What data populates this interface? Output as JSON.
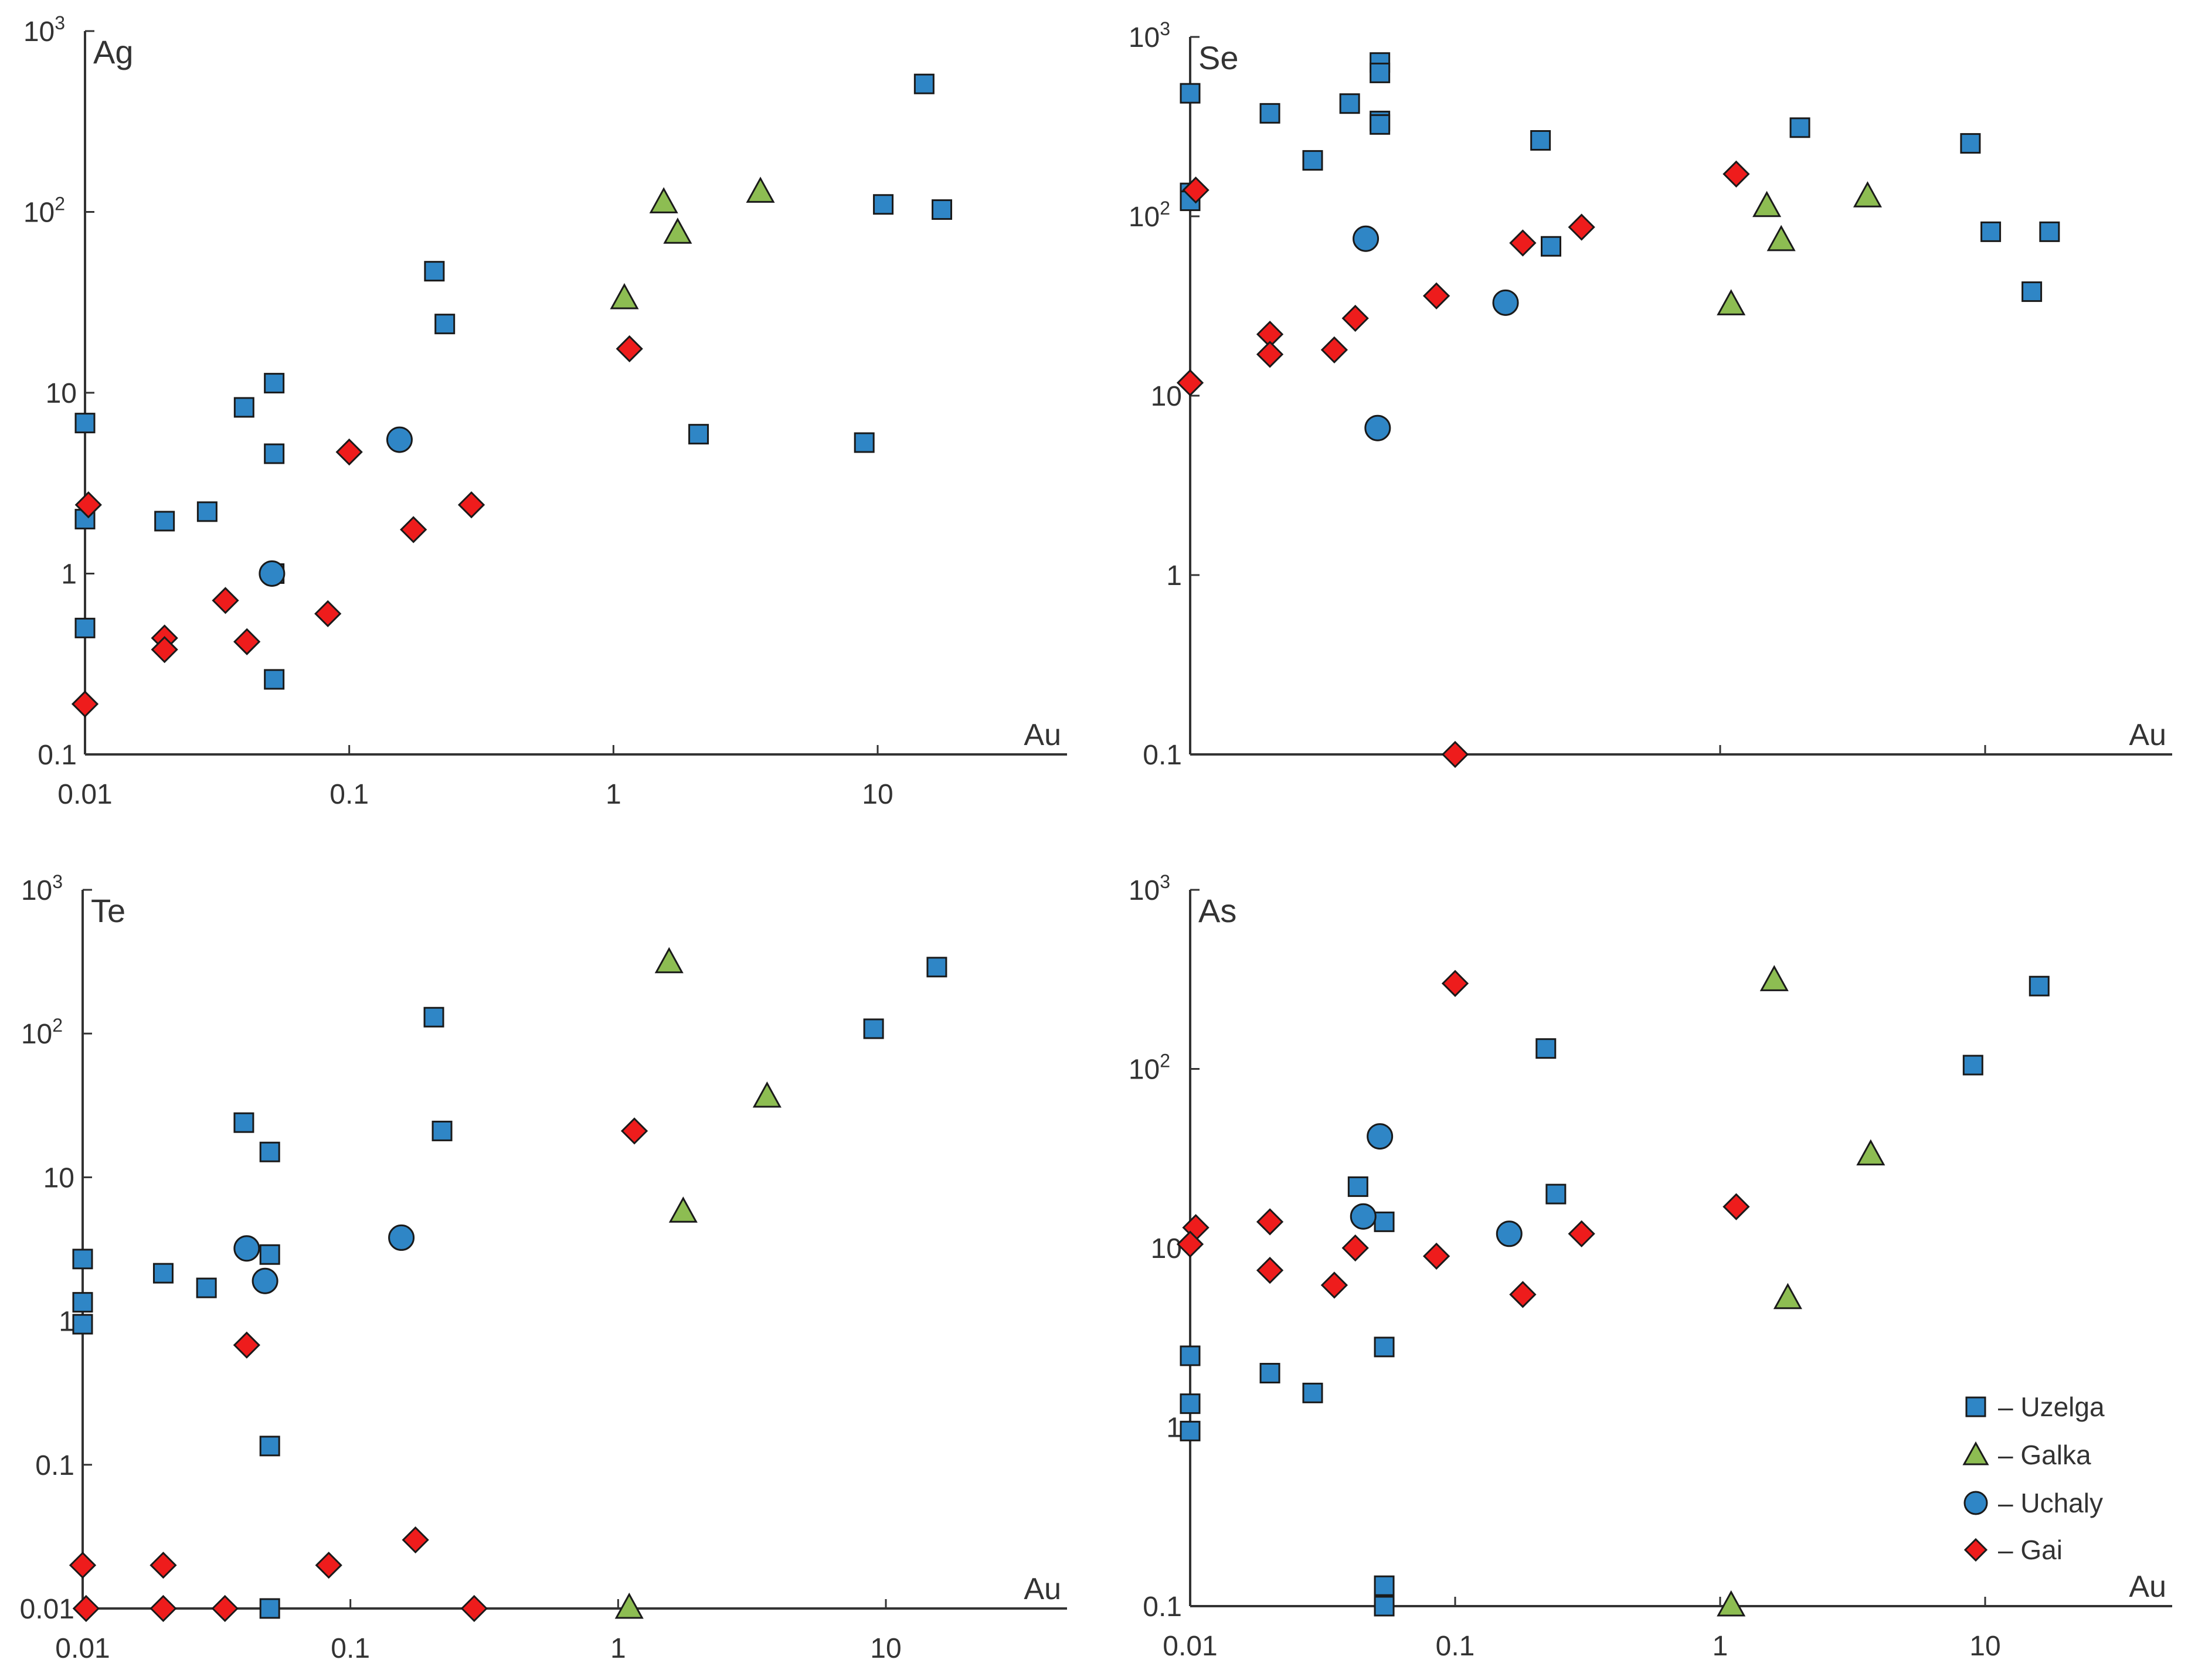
{
  "colors": {
    "Uzelga": "#2f86c6",
    "Galka": "#8dbd52",
    "Uchaly": "#2f86c6",
    "Gai": "#ee1c1c",
    "axis": "#333333",
    "marker_stroke": "#1a1a1a"
  },
  "legend": {
    "position": "bottom-right of As panel",
    "items": [
      {
        "series": "Uzelga",
        "marker": "square-icon",
        "label": "– Uzelga"
      },
      {
        "series": "Galka",
        "marker": "triangle-icon",
        "label": "– Galka"
      },
      {
        "series": "Uchaly",
        "marker": "circle-icon",
        "label": "– Uchaly"
      },
      {
        "series": "Gai",
        "marker": "diamond-icon",
        "label": "– Gai"
      }
    ]
  },
  "chart_data": [
    {
      "type": "scatter",
      "title": "Ag",
      "xlabel": "Au",
      "ylabel": "",
      "x_scale": "log",
      "y_scale": "log",
      "xlim": [
        0.01,
        40
      ],
      "ylim": [
        0.1,
        1000
      ],
      "x_ticks": [
        {
          "v": 0.01,
          "label": "0.01"
        },
        {
          "v": 0.1,
          "label": "0.1"
        },
        {
          "v": 1,
          "label": "1"
        },
        {
          "v": 10,
          "label": "10"
        }
      ],
      "y_ticks": [
        {
          "v": 0.1,
          "label": "0.1",
          "sup": ""
        },
        {
          "v": 1,
          "label": "1",
          "sup": ""
        },
        {
          "v": 10,
          "label": "10",
          "sup": ""
        },
        {
          "v": 100,
          "label": "10",
          "sup": "2"
        },
        {
          "v": 1000,
          "label": "10",
          "sup": "3"
        }
      ],
      "grid": false,
      "series": [
        {
          "name": "Uzelga",
          "marker": "square",
          "points": [
            [
              0.01,
              6.8
            ],
            [
              0.01,
              2.0
            ],
            [
              0.01,
              0.5
            ],
            [
              0.02,
              1.95
            ],
            [
              0.029,
              2.2
            ],
            [
              0.04,
              8.3
            ],
            [
              0.052,
              11.3
            ],
            [
              0.052,
              4.6
            ],
            [
              0.052,
              0.26
            ],
            [
              0.052,
              1.0
            ],
            [
              0.21,
              47
            ],
            [
              0.23,
              24
            ],
            [
              2.1,
              5.9
            ],
            [
              8.9,
              5.3
            ],
            [
              10.5,
              110
            ],
            [
              15,
              510
            ],
            [
              17.5,
              103
            ]
          ]
        },
        {
          "name": "Galka",
          "marker": "triangle",
          "points": [
            [
              1.1,
              33
            ],
            [
              1.55,
              112
            ],
            [
              1.75,
              76
            ],
            [
              3.6,
              128
            ]
          ]
        },
        {
          "name": "Uchaly",
          "marker": "circle",
          "points": [
            [
              0.051,
              1.0
            ],
            [
              0.155,
              5.5
            ]
          ]
        },
        {
          "name": "Gai",
          "marker": "diamond",
          "points": [
            [
              0.0103,
              2.4
            ],
            [
              0.01,
              0.19
            ],
            [
              0.02,
              0.44
            ],
            [
              0.02,
              0.38
            ],
            [
              0.034,
              0.71
            ],
            [
              0.041,
              0.42
            ],
            [
              0.083,
              0.6
            ],
            [
              0.1,
              4.7
            ],
            [
              0.175,
              1.75
            ],
            [
              0.29,
              2.4
            ],
            [
              1.15,
              17.5
            ]
          ]
        }
      ]
    },
    {
      "type": "scatter",
      "title": "Se",
      "xlabel": "Au",
      "ylabel": "",
      "x_scale": "log",
      "y_scale": "log",
      "xlim": [
        0.01,
        40
      ],
      "ylim": [
        0.1,
        1000
      ],
      "x_ticks": [],
      "y_ticks": [
        {
          "v": 0.1,
          "label": "0.1",
          "sup": ""
        },
        {
          "v": 1,
          "label": "1",
          "sup": ""
        },
        {
          "v": 10,
          "label": "10",
          "sup": ""
        },
        {
          "v": 100,
          "label": "10",
          "sup": "2"
        },
        {
          "v": 1000,
          "label": "10",
          "sup": "3"
        }
      ],
      "grid": false,
      "series": [
        {
          "name": "Uzelga",
          "marker": "square",
          "points": [
            [
              0.01,
              485
            ],
            [
              0.01,
              135
            ],
            [
              0.01,
              122
            ],
            [
              0.02,
              375
            ],
            [
              0.029,
              205
            ],
            [
              0.04,
              425
            ],
            [
              0.052,
              720
            ],
            [
              0.052,
              630
            ],
            [
              0.052,
              340
            ],
            [
              0.052,
              325
            ],
            [
              0.21,
              265
            ],
            [
              0.23,
              68
            ],
            [
              2.0,
              312
            ],
            [
              8.8,
              255
            ],
            [
              10.5,
              82
            ],
            [
              15,
              38
            ],
            [
              17.5,
              82
            ]
          ]
        },
        {
          "name": "Galka",
          "marker": "triangle",
          "points": [
            [
              1.1,
              32
            ],
            [
              1.5,
              113
            ],
            [
              1.7,
              73
            ],
            [
              3.6,
              128
            ]
          ]
        },
        {
          "name": "Uchaly",
          "marker": "circle",
          "points": [
            [
              0.046,
              75
            ],
            [
              0.051,
              6.6
            ],
            [
              0.155,
              33
            ]
          ]
        },
        {
          "name": "Gai",
          "marker": "diamond",
          "points": [
            [
              0.0105,
              140
            ],
            [
              0.01,
              11.8
            ],
            [
              0.02,
              22
            ],
            [
              0.02,
              17
            ],
            [
              0.035,
              18
            ],
            [
              0.042,
              27
            ],
            [
              0.085,
              36
            ],
            [
              0.1,
              0.1
            ],
            [
              0.18,
              71
            ],
            [
              0.3,
              87
            ],
            [
              1.15,
              172
            ]
          ]
        }
      ]
    },
    {
      "type": "scatter",
      "title": "Te",
      "xlabel": "Au",
      "ylabel": "",
      "x_scale": "log",
      "y_scale": "log",
      "xlim": [
        0.01,
        40
      ],
      "ylim": [
        0.01,
        1000
      ],
      "x_ticks": [
        {
          "v": 0.01,
          "label": "0.01"
        },
        {
          "v": 0.1,
          "label": "0.1"
        },
        {
          "v": 1,
          "label": "1"
        },
        {
          "v": 10,
          "label": "10"
        }
      ],
      "y_ticks": [
        {
          "v": 0.01,
          "label": "0.01",
          "sup": ""
        },
        {
          "v": 0.1,
          "label": "0.1",
          "sup": ""
        },
        {
          "v": 1,
          "label": "1",
          "sup": ""
        },
        {
          "v": 10,
          "label": "10",
          "sup": ""
        },
        {
          "v": 100,
          "label": "10",
          "sup": "2"
        },
        {
          "v": 1000,
          "label": "10",
          "sup": "3"
        }
      ],
      "grid": false,
      "series": [
        {
          "name": "Uzelga",
          "marker": "square",
          "points": [
            [
              0.01,
              2.7
            ],
            [
              0.01,
              1.35
            ],
            [
              0.01,
              0.95
            ],
            [
              0.02,
              2.15
            ],
            [
              0.029,
              1.7
            ],
            [
              0.04,
              24
            ],
            [
              0.05,
              15
            ],
            [
              0.05,
              2.9
            ],
            [
              0.05,
              0.135
            ],
            [
              0.05,
              0.01
            ],
            [
              0.205,
              130
            ],
            [
              0.22,
              21
            ],
            [
              9.0,
              108
            ],
            [
              15.5,
              290
            ]
          ]
        },
        {
          "name": "Galka",
          "marker": "triangle",
          "points": [
            [
              1.1,
              0.01
            ],
            [
              1.55,
              310
            ],
            [
              1.75,
              5.7
            ],
            [
              3.6,
              36
            ]
          ]
        },
        {
          "name": "Uchaly",
          "marker": "circle",
          "points": [
            [
              0.041,
              3.2
            ],
            [
              0.048,
              1.9
            ],
            [
              0.155,
              3.8
            ]
          ]
        },
        {
          "name": "Gai",
          "marker": "diamond",
          "points": [
            [
              0.01,
              0.02
            ],
            [
              0.0103,
              0.01
            ],
            [
              0.02,
              0.02
            ],
            [
              0.02,
              0.01
            ],
            [
              0.034,
              0.01
            ],
            [
              0.041,
              0.68
            ],
            [
              0.083,
              0.02
            ],
            [
              0.175,
              0.03
            ],
            [
              0.29,
              0.01
            ],
            [
              1.15,
              21
            ]
          ]
        }
      ]
    },
    {
      "type": "scatter",
      "title": "As",
      "xlabel": "Au",
      "ylabel": "",
      "x_scale": "log",
      "y_scale": "log",
      "xlim": [
        0.01,
        40
      ],
      "ylim": [
        0.1,
        1000
      ],
      "x_ticks": [
        {
          "v": 0.01,
          "label": "0.01"
        },
        {
          "v": 0.1,
          "label": "0.1"
        },
        {
          "v": 1,
          "label": "1"
        },
        {
          "v": 10,
          "label": "10"
        }
      ],
      "y_ticks": [
        {
          "v": 0.1,
          "label": "0.1",
          "sup": ""
        },
        {
          "v": 1,
          "label": "1",
          "sup": ""
        },
        {
          "v": 10,
          "label": "10",
          "sup": ""
        },
        {
          "v": 100,
          "label": "10",
          "sup": "2"
        },
        {
          "v": 1000,
          "label": "10",
          "sup": "3"
        }
      ],
      "grid": false,
      "series": [
        {
          "name": "Uzelga",
          "marker": "square",
          "points": [
            [
              0.01,
              2.5
            ],
            [
              0.01,
              1.35
            ],
            [
              0.01,
              0.95
            ],
            [
              0.02,
              2.0
            ],
            [
              0.029,
              1.55
            ],
            [
              0.043,
              22
            ],
            [
              0.054,
              14
            ],
            [
              0.054,
              2.8
            ],
            [
              0.054,
              0.13
            ],
            [
              0.054,
              0.1
            ],
            [
              0.22,
              130
            ],
            [
              0.24,
              20
            ],
            [
              9.0,
              105
            ],
            [
              16,
              290
            ]
          ]
        },
        {
          "name": "Galka",
          "marker": "triangle",
          "points": [
            [
              1.1,
              0.1
            ],
            [
              1.6,
              310
            ],
            [
              1.8,
              5.2
            ],
            [
              3.7,
              33
            ]
          ]
        },
        {
          "name": "Uchaly",
          "marker": "circle",
          "points": [
            [
              0.052,
              42
            ],
            [
              0.045,
              15
            ],
            [
              0.16,
              12
            ]
          ]
        },
        {
          "name": "Gai",
          "marker": "diamond",
          "points": [
            [
              0.0105,
              13
            ],
            [
              0.01,
              10.5
            ],
            [
              0.02,
              14
            ],
            [
              0.02,
              7.5
            ],
            [
              0.035,
              6.2
            ],
            [
              0.042,
              10
            ],
            [
              0.085,
              9
            ],
            [
              0.1,
              300
            ],
            [
              0.18,
              5.5
            ],
            [
              0.3,
              12
            ],
            [
              1.15,
              17
            ]
          ]
        }
      ]
    }
  ]
}
